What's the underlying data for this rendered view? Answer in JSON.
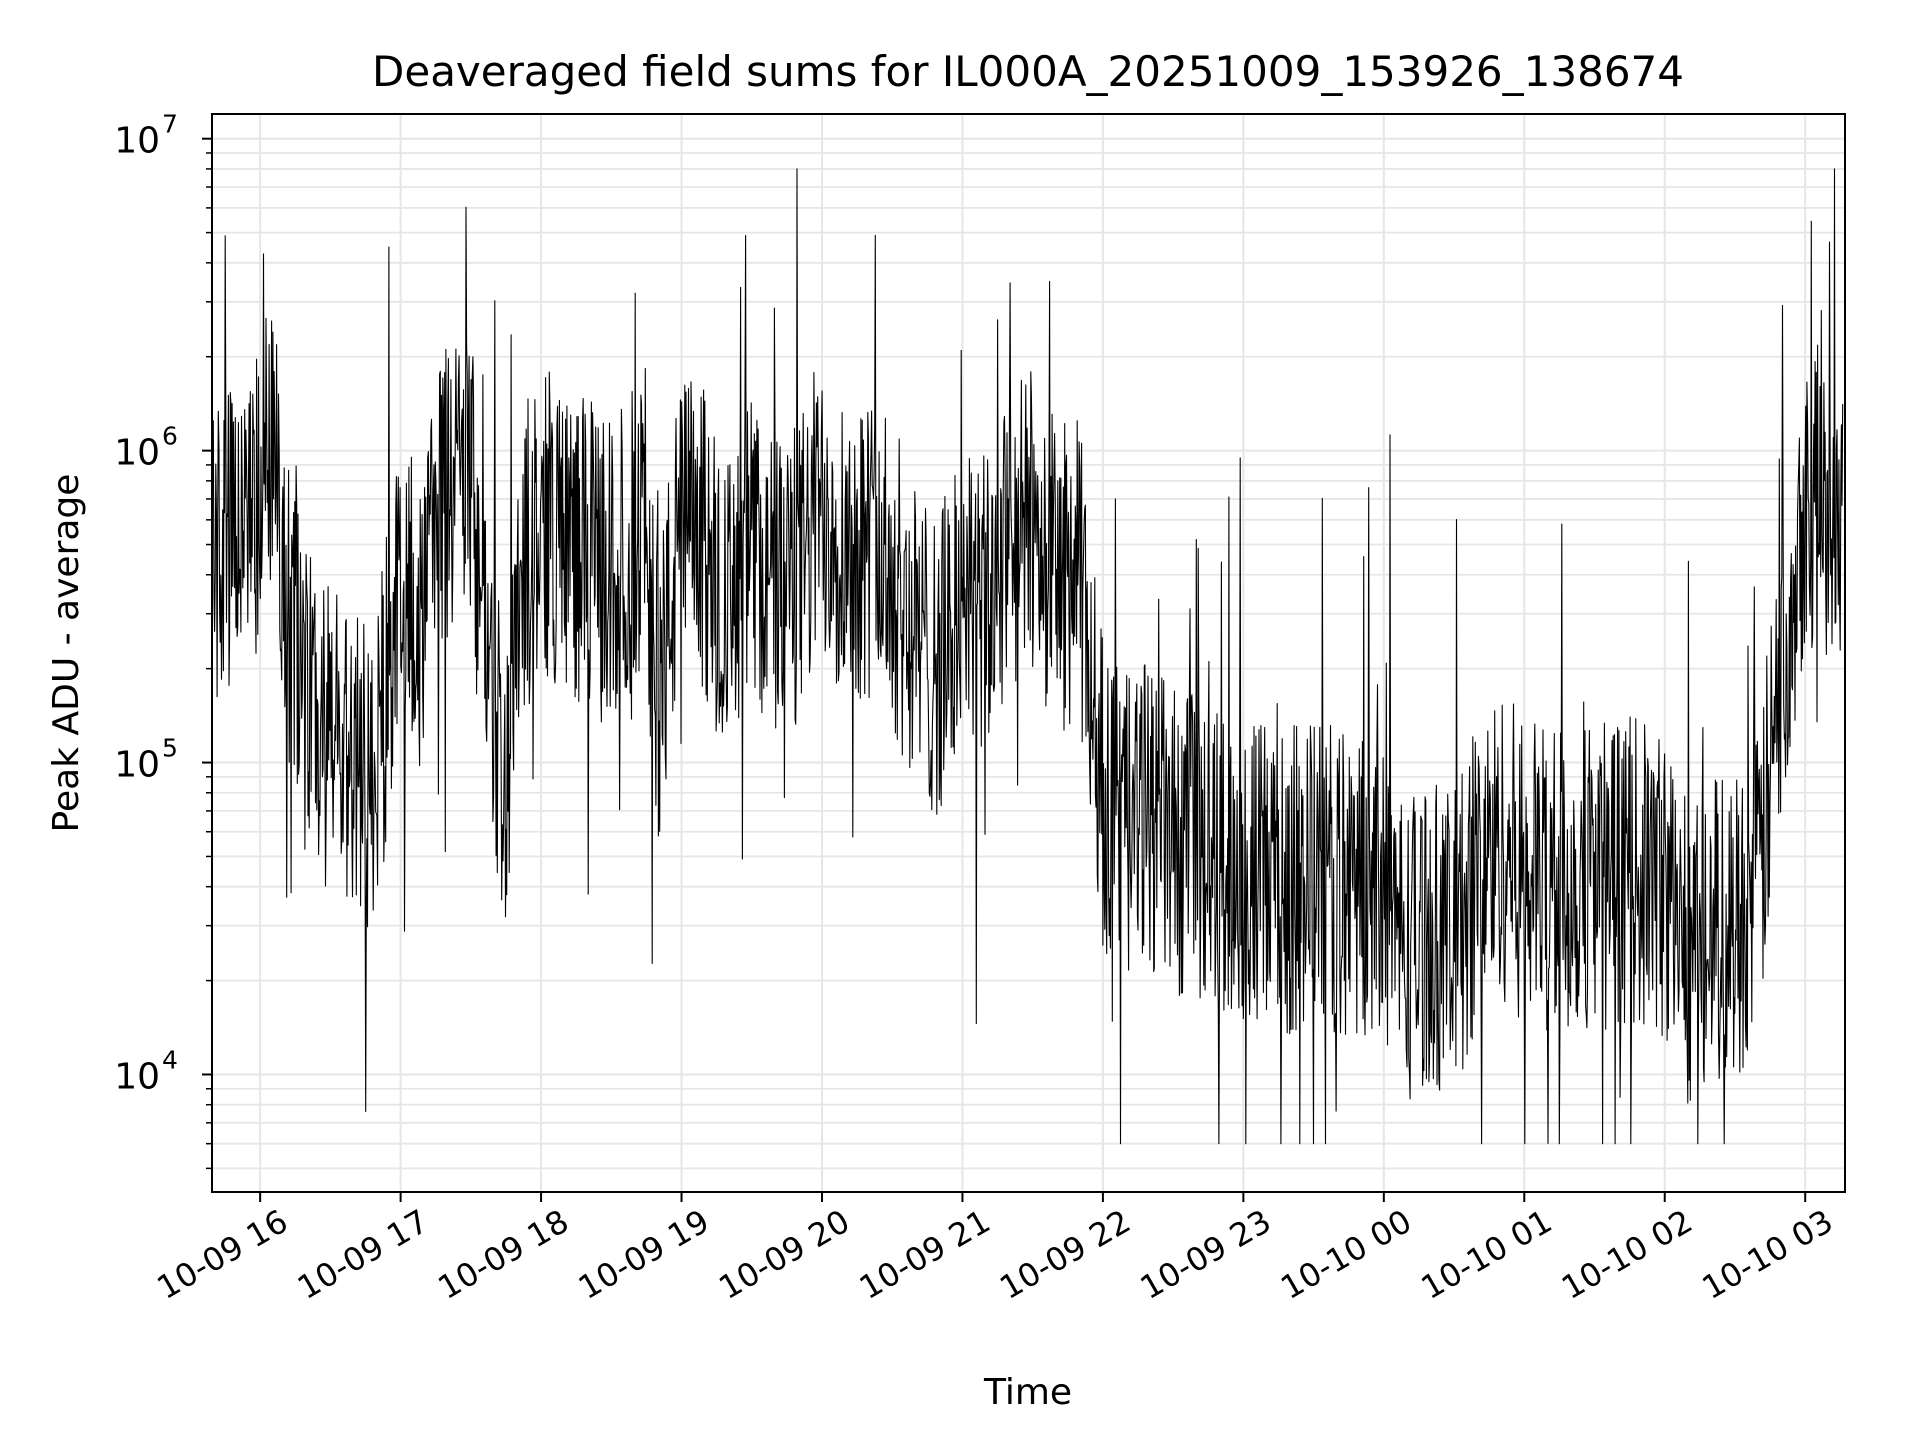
{
  "chart_data": {
    "type": "line",
    "title": "Deaveraged field sums for IL000A_20251009_153926_138674",
    "xlabel": "Time",
    "ylabel": "Peak ADU - average",
    "y_scale": "log",
    "ylim": [
      4200,
      12000000
    ],
    "xlim": [
      "2025-10-09 15:39:26",
      "2025-10-10 03:17:00"
    ],
    "x_tick_labels": [
      "10-09 16",
      "10-09 17",
      "10-09 18",
      "10-09 19",
      "10-09 20",
      "10-09 21",
      "10-09 22",
      "10-09 23",
      "10-10 00",
      "10-10 01",
      "10-10 02",
      "10-10 03"
    ],
    "x_ticks": [
      "2025-10-09 16:00",
      "2025-10-09 17:00",
      "2025-10-09 18:00",
      "2025-10-09 19:00",
      "2025-10-09 20:00",
      "2025-10-09 21:00",
      "2025-10-09 22:00",
      "2025-10-09 23:00",
      "2025-10-10 00:00",
      "2025-10-10 01:00",
      "2025-10-10 02:00",
      "2025-10-10 03:00"
    ],
    "y_tick_labels": [
      {
        "base": "10",
        "exp": "4",
        "value": 10000
      },
      {
        "base": "10",
        "exp": "5",
        "value": 100000
      },
      {
        "base": "10",
        "exp": "6",
        "value": 1000000
      },
      {
        "base": "10",
        "exp": "7",
        "value": 10000000
      }
    ],
    "grid": true,
    "line_color": "#000000",
    "grid_color": "#e6e6e6",
    "series": [
      {
        "x": [
          "2025-10-09 15:40",
          "2025-10-09 15:50",
          "2025-10-09 16:00",
          "2025-10-09 16:04",
          "2025-10-09 16:10",
          "2025-10-09 16:20",
          "2025-10-09 16:30",
          "2025-10-09 16:40",
          "2025-10-09 16:48",
          "2025-10-09 16:55",
          "2025-10-09 17:00",
          "2025-10-09 17:10",
          "2025-10-09 17:15",
          "2025-10-09 17:20",
          "2025-10-09 17:30",
          "2025-10-09 17:38",
          "2025-10-09 17:45",
          "2025-10-09 17:50",
          "2025-10-09 18:00",
          "2025-10-09 18:15",
          "2025-10-09 18:30",
          "2025-10-09 18:45",
          "2025-10-09 18:50",
          "2025-10-09 19:00",
          "2025-10-09 19:10",
          "2025-10-09 19:20",
          "2025-10-09 19:30",
          "2025-10-09 19:40",
          "2025-10-09 19:50",
          "2025-10-09 20:00",
          "2025-10-09 20:10",
          "2025-10-09 20:20",
          "2025-10-09 20:30",
          "2025-10-09 20:40",
          "2025-10-09 20:50",
          "2025-10-09 21:00",
          "2025-10-09 21:10",
          "2025-10-09 21:20",
          "2025-10-09 21:30",
          "2025-10-09 21:40",
          "2025-10-09 21:50",
          "2025-10-09 22:00",
          "2025-10-09 22:10",
          "2025-10-09 22:20",
          "2025-10-09 22:30",
          "2025-10-09 22:45",
          "2025-10-09 23:00",
          "2025-10-09 23:15",
          "2025-10-09 23:30",
          "2025-10-09 23:45",
          "2025-10-10 00:00",
          "2025-10-10 00:10",
          "2025-10-10 00:20",
          "2025-10-10 00:30",
          "2025-10-10 00:40",
          "2025-10-10 00:50",
          "2025-10-10 01:00",
          "2025-10-10 01:15",
          "2025-10-10 01:30",
          "2025-10-10 01:45",
          "2025-10-10 02:00",
          "2025-10-10 02:10",
          "2025-10-10 02:20",
          "2025-10-10 02:30",
          "2025-10-10 02:40",
          "2025-10-10 02:50",
          "2025-10-10 03:00",
          "2025-10-10 03:10",
          "2025-10-10 03:16"
        ],
        "y": [
          450000,
          520000,
          700000,
          1300000,
          400000,
          150000,
          120000,
          100000,
          80000,
          200000,
          400000,
          250000,
          700000,
          800000,
          800000,
          200000,
          80000,
          400000,
          600000,
          500000,
          400000,
          600000,
          150000,
          600000,
          500000,
          300000,
          500000,
          350000,
          400000,
          700000,
          500000,
          500000,
          400000,
          250000,
          200000,
          350000,
          300000,
          500000,
          600000,
          400000,
          400000,
          80000,
          60000,
          70000,
          55000,
          50000,
          45000,
          40000,
          45000,
          40000,
          40000,
          25000,
          30000,
          25000,
          45000,
          55000,
          45000,
          40000,
          45000,
          45000,
          40000,
          25000,
          30000,
          30000,
          40000,
          200000,
          750000,
          650000,
          700000
        ]
      }
    ]
  }
}
